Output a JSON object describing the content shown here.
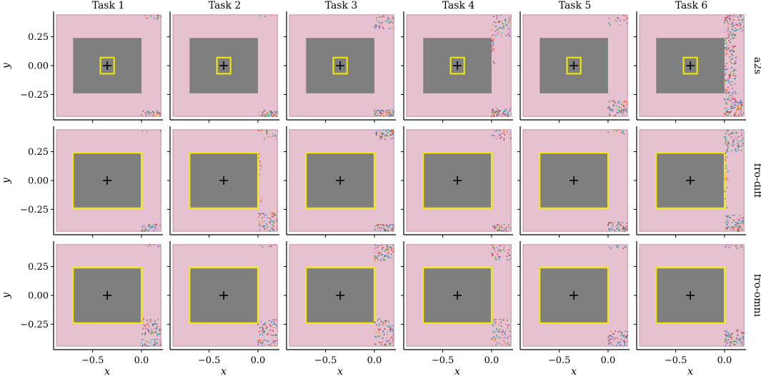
{
  "chart_data": {
    "type": "scatter",
    "columns": [
      "Task 1",
      "Task 2",
      "Task 3",
      "Task 4",
      "Task 5",
      "Task 6"
    ],
    "rows": [
      "a2s",
      "fro-diff",
      "fro-omni"
    ],
    "xlabel": "x",
    "ylabel": "y",
    "xlim": [
      -0.9,
      0.22
    ],
    "ylim": [
      -0.47,
      0.47
    ],
    "xticks": [
      -0.5,
      0.0
    ],
    "xtick_labels": [
      "−0.5",
      "0.0"
    ],
    "yticks": [
      0.25,
      0.0,
      -0.25
    ],
    "ytick_labels": [
      "0.25",
      "0.00",
      "−0.25"
    ],
    "regions": {
      "outer": {
        "x": [
          -0.87,
          0.2
        ],
        "y": [
          -0.44,
          0.44
        ],
        "color": "#e6c2d0",
        "edge": "#cf9aaf"
      },
      "inner": {
        "x": [
          -0.7,
          0.0
        ],
        "y": [
          -0.24,
          0.24
        ],
        "color": "#7f7f7f"
      },
      "target_center": [
        -0.35,
        0.0
      ]
    },
    "row_target": [
      {
        "x": [
          -0.42,
          -0.28
        ],
        "y": [
          -0.07,
          0.07
        ]
      },
      {
        "x": [
          -0.7,
          0.0
        ],
        "y": [
          -0.24,
          0.24
        ]
      },
      {
        "x": [
          -0.7,
          0.0
        ],
        "y": [
          -0.24,
          0.24
        ]
      }
    ],
    "target_color": "#f5ec00",
    "point_colors": [
      "#d62728",
      "#1f77b4",
      "#2ca02c",
      "#ff7f0e",
      "#9467bd",
      "#e377c2",
      "#17becf"
    ],
    "clusters": [
      [
        [
          {
            "x": [
              0.0,
              0.2
            ],
            "y": [
              0.4,
              0.44
            ],
            "n": 12
          },
          {
            "x": [
              0.0,
              0.2
            ],
            "y": [
              -0.44,
              -0.39
            ],
            "n": 35
          }
        ],
        [
          {
            "x": [
              0.0,
              0.2
            ],
            "y": [
              0.42,
              0.44
            ],
            "n": 3
          },
          {
            "x": [
              0.0,
              0.2
            ],
            "y": [
              -0.44,
              -0.39
            ],
            "n": 45
          }
        ],
        [
          {
            "x": [
              0.0,
              0.2
            ],
            "y": [
              0.32,
              0.44
            ],
            "n": 40
          },
          {
            "x": [
              0.0,
              0.2
            ],
            "y": [
              -0.44,
              -0.38
            ],
            "n": 55
          }
        ],
        [
          {
            "x": [
              0.0,
              0.2
            ],
            "y": [
              0.25,
              0.44
            ],
            "n": 55
          },
          {
            "x": [
              0.0,
              0.03
            ],
            "y": [
              0.0,
              0.25
            ],
            "n": 12
          },
          {
            "x": [
              0.0,
              0.2
            ],
            "y": [
              -0.44,
              -0.37
            ],
            "n": 55
          }
        ],
        [
          {
            "x": [
              0.0,
              0.2
            ],
            "y": [
              0.35,
              0.44
            ],
            "n": 15
          },
          {
            "x": [
              0.0,
              0.2
            ],
            "y": [
              -0.44,
              -0.3
            ],
            "n": 65
          }
        ],
        [
          {
            "x": [
              0.0,
              0.2
            ],
            "y": [
              0.3,
              0.44
            ],
            "n": 70
          },
          {
            "x": [
              0.0,
              0.12
            ],
            "y": [
              -0.3,
              0.3
            ],
            "n": 140
          },
          {
            "x": [
              0.0,
              0.2
            ],
            "y": [
              -0.44,
              -0.3
            ],
            "n": 90
          }
        ]
      ],
      [
        [
          {
            "x": [
              0.0,
              0.2
            ],
            "y": [
              0.42,
              0.44
            ],
            "n": 3
          },
          {
            "x": [
              0.0,
              0.2
            ],
            "y": [
              -0.44,
              -0.38
            ],
            "n": 40
          }
        ],
        [
          {
            "x": [
              0.0,
              0.2
            ],
            "y": [
              0.36,
              0.44
            ],
            "n": 15
          },
          {
            "x": [
              0.0,
              0.2
            ],
            "y": [
              -0.44,
              -0.28
            ],
            "n": 70
          },
          {
            "x": [
              0.0,
              0.04
            ],
            "y": [
              -0.24,
              0.24
            ],
            "n": 10
          }
        ],
        [
          {
            "x": [
              0.0,
              0.2
            ],
            "y": [
              0.35,
              0.44
            ],
            "n": 45
          },
          {
            "x": [
              0.0,
              0.2
            ],
            "y": [
              -0.44,
              -0.38
            ],
            "n": 45
          }
        ],
        [
          {
            "x": [
              0.0,
              0.2
            ],
            "y": [
              0.35,
              0.44
            ],
            "n": 25
          },
          {
            "x": [
              0.0,
              0.2
            ],
            "y": [
              -0.44,
              -0.38
            ],
            "n": 40
          }
        ],
        [
          {
            "x": [
              0.0,
              0.2
            ],
            "y": [
              0.4,
              0.44
            ],
            "n": 10
          },
          {
            "x": [
              0.0,
              0.2
            ],
            "y": [
              -0.44,
              -0.36
            ],
            "n": 55
          }
        ],
        [
          {
            "x": [
              0.0,
              0.2
            ],
            "y": [
              0.25,
              0.44
            ],
            "n": 70
          },
          {
            "x": [
              0.0,
              0.2
            ],
            "y": [
              -0.44,
              -0.3
            ],
            "n": 75
          },
          {
            "x": [
              0.0,
              0.04
            ],
            "y": [
              -0.25,
              0.25
            ],
            "n": 20
          }
        ]
      ],
      [
        [
          {
            "x": [
              0.0,
              0.2
            ],
            "y": [
              0.42,
              0.44
            ],
            "n": 8
          },
          {
            "x": [
              0.0,
              0.2
            ],
            "y": [
              -0.35,
              -0.2
            ],
            "n": 60
          },
          {
            "x": [
              0.0,
              0.2
            ],
            "y": [
              -0.44,
              -0.38
            ],
            "n": 30
          }
        ],
        [
          {
            "x": [
              0.0,
              0.2
            ],
            "y": [
              0.42,
              0.44
            ],
            "n": 6
          },
          {
            "x": [
              0.0,
              0.2
            ],
            "y": [
              -0.35,
              -0.2
            ],
            "n": 60
          },
          {
            "x": [
              0.0,
              0.2
            ],
            "y": [
              -0.44,
              -0.38
            ],
            "n": 30
          }
        ],
        [
          {
            "x": [
              0.0,
              0.2
            ],
            "y": [
              0.3,
              0.44
            ],
            "n": 60
          },
          {
            "x": [
              0.0,
              0.2
            ],
            "y": [
              -0.44,
              -0.2
            ],
            "n": 80
          }
        ],
        [
          {
            "x": [
              0.0,
              0.2
            ],
            "y": [
              0.3,
              0.44
            ],
            "n": 50
          },
          {
            "x": [
              0.0,
              0.2
            ],
            "y": [
              -0.44,
              -0.2
            ],
            "n": 70
          }
        ],
        [
          {
            "x": [
              0.0,
              0.2
            ],
            "y": [
              0.4,
              0.44
            ],
            "n": 10
          },
          {
            "x": [
              0.0,
              0.2
            ],
            "y": [
              -0.44,
              -0.3
            ],
            "n": 65
          }
        ],
        [
          {
            "x": [
              0.0,
              0.2
            ],
            "y": [
              0.4,
              0.44
            ],
            "n": 12
          },
          {
            "x": [
              0.0,
              0.2
            ],
            "y": [
              -0.44,
              -0.3
            ],
            "n": 70
          }
        ]
      ]
    ],
    "grid": false,
    "legend": "none"
  }
}
